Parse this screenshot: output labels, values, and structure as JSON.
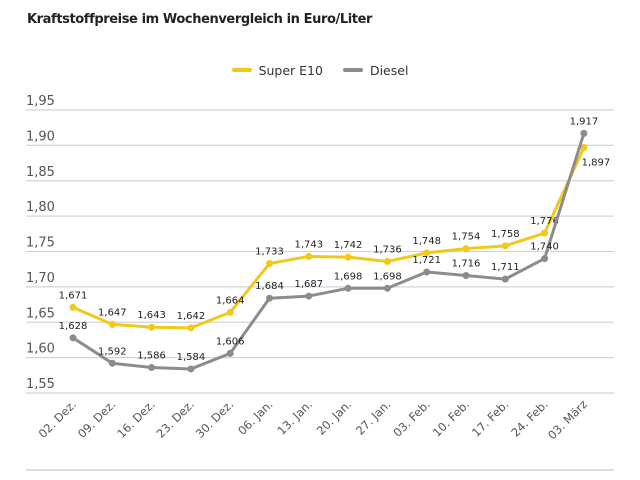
{
  "chart_data": {
    "type": "line",
    "title": "Kraftstoffpreise im Wochenvergleich in Euro/Liter",
    "xlabel": "",
    "ylabel": "",
    "categories": [
      "02. Dez.",
      "09. Dez.",
      "16. Dez.",
      "23. Dez.",
      "30. Dez.",
      "06. Jan.",
      "13. Jan.",
      "20. Jan.",
      "27. Jan.",
      "03. Feb.",
      "10. Feb.",
      "17. Feb.",
      "24. Feb.",
      "03. März"
    ],
    "ylim": [
      1.55,
      1.95
    ],
    "yticks": [
      "1,55",
      "1,60",
      "1,65",
      "1,70",
      "1,75",
      "1,80",
      "1,85",
      "1,90",
      "1,95"
    ],
    "grid": true,
    "legend": "top-center",
    "series": [
      {
        "name": "Super E10",
        "color": "#f0c91a",
        "values": [
          1.671,
          1.647,
          1.643,
          1.642,
          1.664,
          1.733,
          1.743,
          1.742,
          1.736,
          1.748,
          1.754,
          1.758,
          1.776,
          1.897
        ],
        "labels": [
          "1,671",
          "1,647",
          "1,643",
          "1,642",
          "1,664",
          "1,733",
          "1,743",
          "1,742",
          "1,736",
          "1,748",
          "1,754",
          "1,758",
          "1,776",
          "1,897"
        ]
      },
      {
        "name": "Diesel",
        "color": "#8c8c8c",
        "values": [
          1.628,
          1.592,
          1.586,
          1.584,
          1.606,
          1.684,
          1.687,
          1.698,
          1.698,
          1.721,
          1.716,
          1.711,
          1.74,
          1.917
        ],
        "labels": [
          "1,628",
          "1,592",
          "1,586",
          "1,584",
          "1,606",
          "1,684",
          "1,687",
          "1,698",
          "1,698",
          "1,721",
          "1,716",
          "1,711",
          "1,740",
          "1,917"
        ]
      }
    ]
  }
}
